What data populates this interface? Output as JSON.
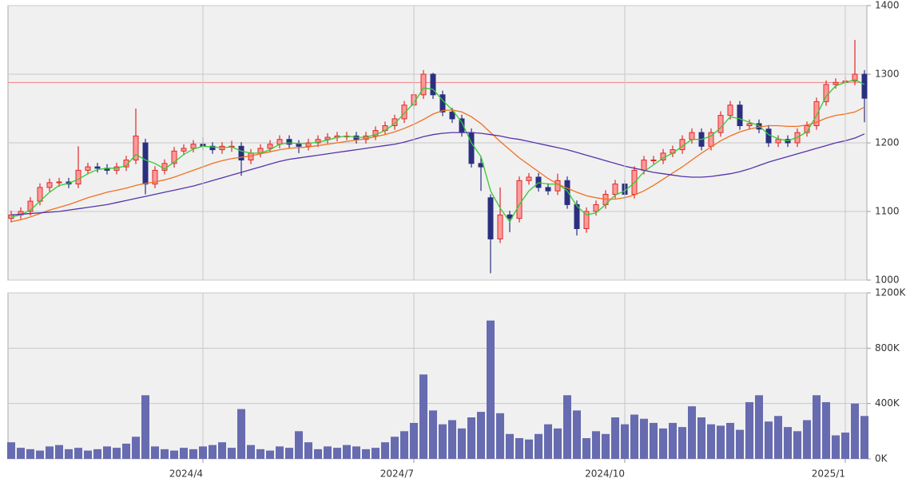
{
  "chart_data": [
    {
      "type": "candlestick",
      "open": [
        1090,
        1095,
        1100,
        1115,
        1135,
        1142,
        1143,
        1140,
        1160,
        1165,
        1163,
        1160,
        1165,
        1175,
        1200,
        1140,
        1160,
        1170,
        1188,
        1192,
        1198,
        1195,
        1190,
        1195,
        1195,
        1175,
        1185,
        1192,
        1198,
        1205,
        1198,
        1195,
        1200,
        1205,
        1208,
        1210,
        1210,
        1205,
        1210,
        1218,
        1225,
        1235,
        1255,
        1270,
        1300,
        1270,
        1245,
        1235,
        1215,
        1170,
        1120,
        1060,
        1095,
        1090,
        1145,
        1150,
        1135,
        1130,
        1145,
        1110,
        1075,
        1100,
        1110,
        1125,
        1140,
        1125,
        1160,
        1175,
        1175,
        1185,
        1190,
        1205,
        1215,
        1195,
        1215,
        1240,
        1255,
        1225,
        1228,
        1220,
        1200,
        1205,
        1200,
        1215,
        1225,
        1260,
        1285,
        1288,
        1290,
        1300
      ],
      "high": [
        1101,
        1106,
        1121,
        1141,
        1148,
        1149,
        1149,
        1195,
        1171,
        1171,
        1169,
        1171,
        1181,
        1250,
        1206,
        1166,
        1176,
        1194,
        1198,
        1204,
        1208,
        1201,
        1201,
        1203,
        1201,
        1191,
        1198,
        1204,
        1211,
        1211,
        1204,
        1206,
        1211,
        1214,
        1216,
        1216,
        1216,
        1216,
        1224,
        1231,
        1241,
        1261,
        1276,
        1306,
        1302,
        1276,
        1251,
        1241,
        1221,
        1180,
        1125,
        1135,
        1101,
        1151,
        1156,
        1156,
        1141,
        1155,
        1151,
        1116,
        1106,
        1116,
        1131,
        1146,
        1146,
        1166,
        1181,
        1181,
        1191,
        1196,
        1211,
        1221,
        1221,
        1221,
        1246,
        1261,
        1261,
        1234,
        1234,
        1226,
        1211,
        1211,
        1221,
        1231,
        1266,
        1291,
        1294,
        1296,
        1350,
        1306
      ],
      "low": [
        1084,
        1089,
        1094,
        1109,
        1129,
        1136,
        1134,
        1134,
        1154,
        1157,
        1154,
        1154,
        1159,
        1169,
        1125,
        1134,
        1154,
        1164,
        1182,
        1186,
        1189,
        1184,
        1184,
        1187,
        1152,
        1169,
        1179,
        1186,
        1192,
        1192,
        1185,
        1189,
        1194,
        1199,
        1202,
        1204,
        1199,
        1199,
        1204,
        1212,
        1219,
        1229,
        1249,
        1264,
        1264,
        1239,
        1229,
        1209,
        1164,
        1130,
        1010,
        1054,
        1070,
        1084,
        1139,
        1129,
        1124,
        1124,
        1104,
        1065,
        1069,
        1094,
        1104,
        1119,
        1118,
        1119,
        1154,
        1169,
        1169,
        1179,
        1184,
        1199,
        1189,
        1189,
        1209,
        1234,
        1219,
        1219,
        1214,
        1194,
        1194,
        1194,
        1194,
        1209,
        1219,
        1254,
        1279,
        1282,
        1284,
        1230
      ],
      "close": [
        1095,
        1100,
        1115,
        1135,
        1142,
        1143,
        1140,
        1160,
        1165,
        1163,
        1160,
        1165,
        1175,
        1210,
        1140,
        1160,
        1170,
        1188,
        1192,
        1198,
        1195,
        1190,
        1195,
        1195,
        1175,
        1185,
        1192,
        1198,
        1205,
        1198,
        1195,
        1200,
        1205,
        1208,
        1210,
        1210,
        1205,
        1210,
        1218,
        1225,
        1235,
        1255,
        1270,
        1300,
        1270,
        1245,
        1235,
        1215,
        1170,
        1165,
        1060,
        1095,
        1090,
        1145,
        1150,
        1135,
        1130,
        1145,
        1110,
        1075,
        1100,
        1110,
        1125,
        1140,
        1125,
        1160,
        1175,
        1175,
        1185,
        1190,
        1205,
        1215,
        1195,
        1215,
        1240,
        1255,
        1225,
        1228,
        1220,
        1200,
        1205,
        1200,
        1215,
        1225,
        1260,
        1285,
        1288,
        1290,
        1300,
        1265
      ],
      "up_color": "#e02828",
      "down_color": "#2a2f80",
      "lines": [
        {
          "color": "#33cc33",
          "values": [
            1092,
            1095,
            1102,
            1115,
            1128,
            1138,
            1141,
            1147,
            1155,
            1161,
            1163,
            1163,
            1167,
            1183,
            1175,
            1170,
            1162,
            1172,
            1183,
            1191,
            1195,
            1194,
            1193,
            1194,
            1188,
            1185,
            1185,
            1190,
            1198,
            1200,
            1199,
            1199,
            1201,
            1204,
            1208,
            1210,
            1208,
            1208,
            1212,
            1218,
            1228,
            1243,
            1258,
            1280,
            1278,
            1262,
            1248,
            1230,
            1200,
            1180,
            1130,
            1105,
            1085,
            1110,
            1130,
            1142,
            1140,
            1140,
            1130,
            1108,
            1095,
            1098,
            1110,
            1124,
            1130,
            1142,
            1158,
            1168,
            1178,
            1185,
            1195,
            1205,
            1205,
            1210,
            1222,
            1238,
            1235,
            1230,
            1225,
            1212,
            1206,
            1203,
            1208,
            1216,
            1240,
            1268,
            1283,
            1288,
            1292,
            1285
          ]
        },
        {
          "color": "#f07020",
          "values": [
            1085,
            1088,
            1092,
            1097,
            1102,
            1106,
            1110,
            1115,
            1120,
            1124,
            1128,
            1131,
            1134,
            1138,
            1141,
            1143,
            1146,
            1150,
            1155,
            1160,
            1165,
            1170,
            1174,
            1177,
            1179,
            1181,
            1184,
            1187,
            1190,
            1192,
            1193,
            1194,
            1196,
            1198,
            1200,
            1202,
            1204,
            1206,
            1209,
            1212,
            1216,
            1221,
            1227,
            1234,
            1242,
            1247,
            1248,
            1245,
            1238,
            1228,
            1215,
            1202,
            1190,
            1178,
            1168,
            1158,
            1148,
            1140,
            1134,
            1128,
            1123,
            1120,
            1118,
            1118,
            1120,
            1124,
            1130,
            1138,
            1147,
            1156,
            1165,
            1175,
            1185,
            1194,
            1203,
            1210,
            1216,
            1220,
            1223,
            1225,
            1225,
            1224,
            1224,
            1226,
            1230,
            1236,
            1240,
            1242,
            1245,
            1252
          ]
        },
        {
          "color": "#5533aa",
          "values": [
            1095,
            1096,
            1097,
            1098,
            1099,
            1100,
            1102,
            1104,
            1106,
            1108,
            1110,
            1113,
            1116,
            1119,
            1122,
            1125,
            1128,
            1131,
            1134,
            1137,
            1141,
            1145,
            1149,
            1153,
            1157,
            1161,
            1165,
            1169,
            1173,
            1176,
            1178,
            1180,
            1182,
            1184,
            1186,
            1188,
            1190,
            1192,
            1194,
            1196,
            1198,
            1201,
            1205,
            1209,
            1212,
            1214,
            1215,
            1215,
            1215,
            1214,
            1212,
            1210,
            1207,
            1205,
            1202,
            1199,
            1196,
            1193,
            1190,
            1186,
            1182,
            1178,
            1174,
            1170,
            1166,
            1163,
            1160,
            1157,
            1155,
            1153,
            1151,
            1150,
            1150,
            1151,
            1153,
            1155,
            1158,
            1162,
            1167,
            1172,
            1176,
            1180,
            1184,
            1188,
            1192,
            1196,
            1200,
            1203,
            1207,
            1213
          ]
        }
      ],
      "ref_line": {
        "value": 1288,
        "color": "#f08080"
      },
      "ylim": [
        1000,
        1400
      ],
      "yticks": [
        1000,
        1100,
        1200,
        1300,
        1400
      ],
      "grid": true
    },
    {
      "type": "bar",
      "color": "#676bb0",
      "categories": [
        null,
        null,
        null,
        null,
        null,
        null,
        null,
        null,
        null,
        null,
        null,
        null,
        null,
        null,
        null,
        null,
        null,
        null,
        null,
        null,
        "2024/4",
        null,
        null,
        null,
        null,
        null,
        null,
        null,
        null,
        null,
        null,
        null,
        null,
        null,
        null,
        null,
        null,
        null,
        null,
        null,
        null,
        null,
        "2024/7",
        null,
        null,
        null,
        null,
        null,
        null,
        null,
        null,
        null,
        null,
        null,
        null,
        null,
        null,
        null,
        null,
        null,
        null,
        null,
        null,
        null,
        "2024/10",
        null,
        null,
        null,
        null,
        null,
        null,
        null,
        null,
        null,
        null,
        null,
        null,
        null,
        null,
        null,
        null,
        null,
        null,
        null,
        null,
        null,
        null,
        "2025/1",
        null,
        null
      ],
      "values": [
        120000,
        80000,
        70000,
        60000,
        90000,
        100000,
        70000,
        80000,
        60000,
        70000,
        90000,
        80000,
        110000,
        160000,
        460000,
        90000,
        70000,
        60000,
        80000,
        70000,
        90000,
        100000,
        120000,
        80000,
        360000,
        100000,
        70000,
        60000,
        90000,
        80000,
        200000,
        120000,
        70000,
        90000,
        80000,
        100000,
        90000,
        70000,
        80000,
        120000,
        160000,
        200000,
        260000,
        610000,
        350000,
        250000,
        280000,
        220000,
        300000,
        340000,
        1000000,
        330000,
        180000,
        150000,
        140000,
        180000,
        250000,
        220000,
        460000,
        350000,
        150000,
        200000,
        180000,
        300000,
        250000,
        320000,
        290000,
        260000,
        220000,
        260000,
        230000,
        380000,
        300000,
        250000,
        240000,
        260000,
        210000,
        410000,
        460000,
        270000,
        310000,
        230000,
        200000,
        280000,
        460000,
        410000,
        170000,
        190000,
        400000,
        310000
      ],
      "ylim": [
        0,
        1200000
      ],
      "yticks": [
        {
          "value": 0,
          "label": "0K"
        },
        {
          "value": 400000,
          "label": "400K"
        },
        {
          "value": 800000,
          "label": "800K"
        },
        {
          "value": 1200000,
          "label": "1200K"
        }
      ],
      "grid": true
    }
  ]
}
